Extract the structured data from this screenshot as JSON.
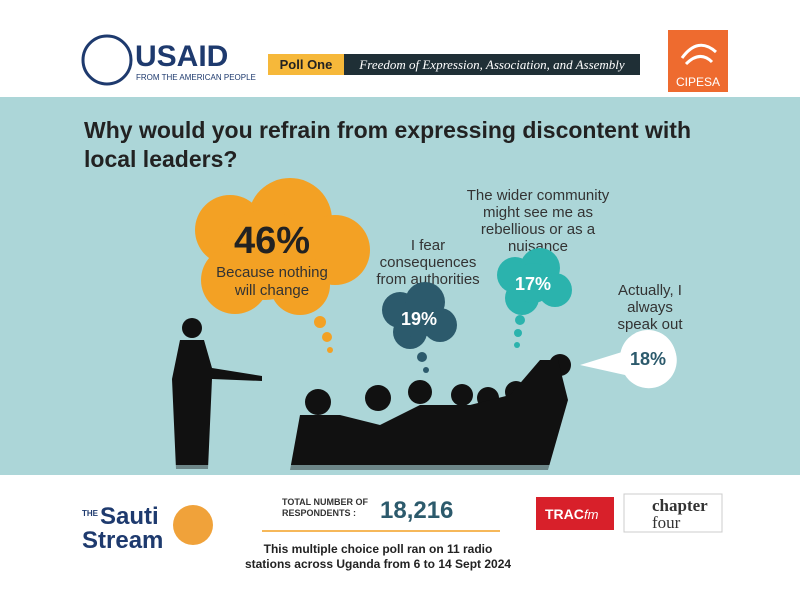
{
  "header": {
    "logo": "USAID",
    "logo_tagline": "FROM THE AMERICAN PEOPLE",
    "poll_label": "Poll One",
    "poll_title": "Freedom of Expression, Association, and Assembly",
    "partner": "CIPESA"
  },
  "question": [
    "Why would you refrain from expressing discontent with",
    "local leaders?"
  ],
  "answers": [
    {
      "percent": "46%",
      "text": [
        "Because nothing",
        "will change"
      ]
    },
    {
      "percent": "19%",
      "text": [
        "I fear",
        "consequences",
        "from authorities"
      ]
    },
    {
      "percent": "17%",
      "text": [
        "The wider community",
        "might see me as",
        "rebellious or as a",
        "nuisance"
      ]
    },
    {
      "percent": "18%",
      "text": [
        "Actually, I",
        "always",
        "speak out"
      ]
    }
  ],
  "footer": {
    "brand": [
      "THE",
      "Sauti",
      "Stream"
    ],
    "respondents_label": [
      "TOTAL NUMBER OF",
      "RESPONDENTS :"
    ],
    "respondents": "18,216",
    "note": [
      "This multiple choice poll ran on 11 radio",
      "stations across Uganda from 6 to 14 Sept 2024"
    ],
    "partners": [
      "TRAC",
      "fm",
      "chapter",
      "four"
    ]
  }
}
